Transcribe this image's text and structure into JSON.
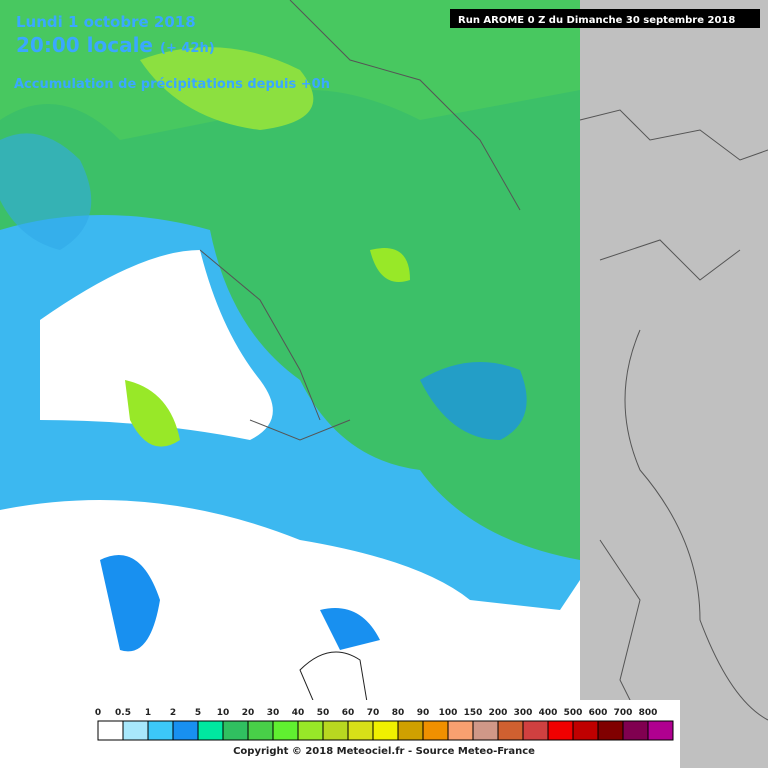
{
  "header": {
    "date": "Lundi 1 octobre 2018",
    "time": "20:00 locale",
    "lead": "(+ 42h)",
    "product": "Accumulation de précipitations depuis +0h",
    "run": "Run AROME 0 Z du Dimanche 30 septembre 2018"
  },
  "legend": [
    {
      "label": "0",
      "color": "#ffffff"
    },
    {
      "label": "0.5",
      "color": "#a8e8fc"
    },
    {
      "label": "1",
      "color": "#3cc8f8"
    },
    {
      "label": "2",
      "color": "#1890f0"
    },
    {
      "label": "5",
      "color": "#00e8a0"
    },
    {
      "label": "10",
      "color": "#30c060"
    },
    {
      "label": "20",
      "color": "#48d048"
    },
    {
      "label": "30",
      "color": "#60f030"
    },
    {
      "label": "40",
      "color": "#98e828"
    },
    {
      "label": "50",
      "color": "#b8d820"
    },
    {
      "label": "60",
      "color": "#d8e018"
    },
    {
      "label": "70",
      "color": "#f0f000"
    },
    {
      "label": "80",
      "color": "#d0a000"
    },
    {
      "label": "90",
      "color": "#f09000"
    },
    {
      "label": "100",
      "color": "#f8a070"
    },
    {
      "label": "150",
      "color": "#d09888"
    },
    {
      "label": "200",
      "color": "#d06030"
    },
    {
      "label": "300",
      "color": "#d04040"
    },
    {
      "label": "400",
      "color": "#f00000"
    },
    {
      "label": "500",
      "color": "#c00000"
    },
    {
      "label": "600",
      "color": "#800000"
    },
    {
      "label": "700",
      "color": "#800050"
    },
    {
      "label": "800",
      "color": "#b00090"
    }
  ],
  "footer": {
    "copyright": "Copyright © 2018 Meteociel.fr - Source Meteo-France"
  }
}
